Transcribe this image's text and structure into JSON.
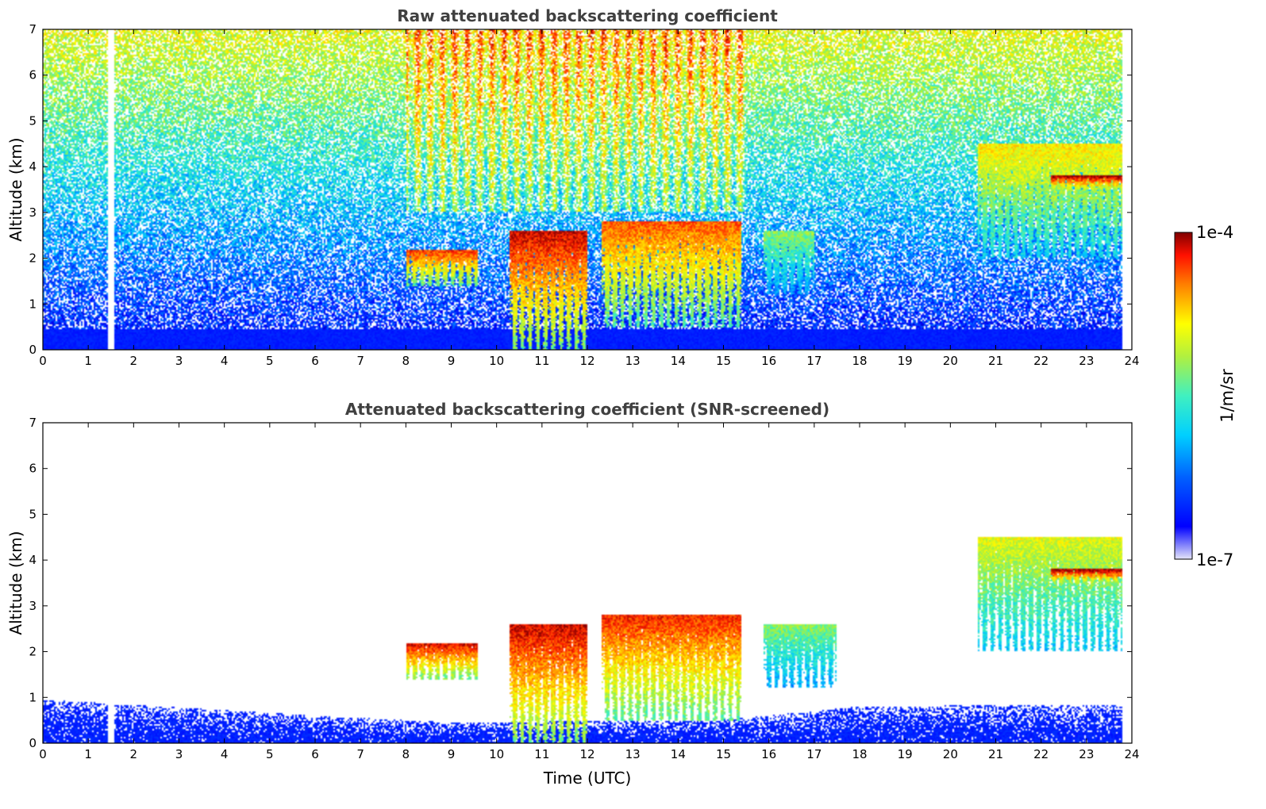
{
  "chart_data": [
    {
      "type": "heatmap",
      "title": "Raw attenuated backscattering coefficient",
      "xlabel": "",
      "ylabel": "Altitude (km)",
      "xlim": [
        0,
        24
      ],
      "ylim": [
        0,
        7
      ],
      "xticks": [
        "0",
        "1",
        "2",
        "3",
        "4",
        "5",
        "6",
        "7",
        "8",
        "9",
        "10",
        "11",
        "12",
        "13",
        "14",
        "15",
        "16",
        "17",
        "18",
        "19",
        "20",
        "21",
        "22",
        "23",
        "24"
      ],
      "yticks": [
        "0",
        "1",
        "2",
        "3",
        "4",
        "5",
        "6",
        "7"
      ],
      "data_gaps_hours": [
        [
          1.45,
          1.58
        ],
        [
          23.8,
          24
        ]
      ],
      "features": [
        {
          "time_start": 8.0,
          "time_end": 9.6,
          "alt_km": [
            1.4,
            2.2
          ],
          "level": 0.9
        },
        {
          "time_start": 10.3,
          "time_end": 12.0,
          "alt_km": [
            0.0,
            2.6
          ],
          "level": 0.95
        },
        {
          "time_start": 12.3,
          "time_end": 15.4,
          "alt_km": [
            0.5,
            2.8
          ],
          "level": 0.85
        },
        {
          "time_start": 15.9,
          "time_end": 17.0,
          "alt_km": [
            1.2,
            2.6
          ],
          "level": 0.55
        },
        {
          "time_start": 20.6,
          "time_end": 23.8,
          "alt_km": [
            2.0,
            4.5
          ],
          "level": 0.7
        },
        {
          "time_start": 22.2,
          "time_end": 23.8,
          "alt_km": [
            3.5,
            3.8
          ],
          "level": 1.0
        }
      ]
    },
    {
      "type": "heatmap",
      "title": "Attenuated backscattering coefficient (SNR-screened)",
      "xlabel": "Time (UTC)",
      "ylabel": "Altitude (km)",
      "xlim": [
        0,
        24
      ],
      "ylim": [
        0,
        7
      ],
      "xticks": [
        "0",
        "1",
        "2",
        "3",
        "4",
        "5",
        "6",
        "7",
        "8",
        "9",
        "10",
        "11",
        "12",
        "13",
        "14",
        "15",
        "16",
        "17",
        "18",
        "19",
        "20",
        "21",
        "22",
        "23",
        "24"
      ],
      "yticks": [
        "0",
        "1",
        "2",
        "3",
        "4",
        "5",
        "6",
        "7"
      ],
      "data_gaps_hours": [
        [
          1.45,
          1.58
        ],
        [
          23.8,
          24
        ]
      ],
      "boundary_layer_top_km": [
        [
          0,
          0.95
        ],
        [
          6,
          0.6
        ],
        [
          9,
          0.45
        ],
        [
          15,
          0.5
        ],
        [
          18,
          0.8
        ],
        [
          24,
          0.85
        ]
      ],
      "features": [
        {
          "time_start": 8.0,
          "time_end": 9.6,
          "alt_km": [
            1.4,
            2.2
          ],
          "level": 0.95
        },
        {
          "time_start": 10.3,
          "time_end": 12.0,
          "alt_km": [
            0.0,
            2.6
          ],
          "level": 0.95
        },
        {
          "time_start": 12.3,
          "time_end": 15.4,
          "alt_km": [
            0.5,
            2.8
          ],
          "level": 0.9
        },
        {
          "time_start": 15.9,
          "time_end": 17.5,
          "alt_km": [
            1.2,
            2.6
          ],
          "level": 0.55
        },
        {
          "time_start": 20.6,
          "time_end": 23.8,
          "alt_km": [
            2.0,
            4.5
          ],
          "level": 0.65
        },
        {
          "time_start": 22.2,
          "time_end": 23.8,
          "alt_km": [
            3.5,
            3.8
          ],
          "level": 1.0
        }
      ]
    }
  ],
  "colorbar": {
    "label": "1/m/sr",
    "max_label": "1e-4",
    "min_label": "1e-7",
    "colormap": "jet"
  }
}
